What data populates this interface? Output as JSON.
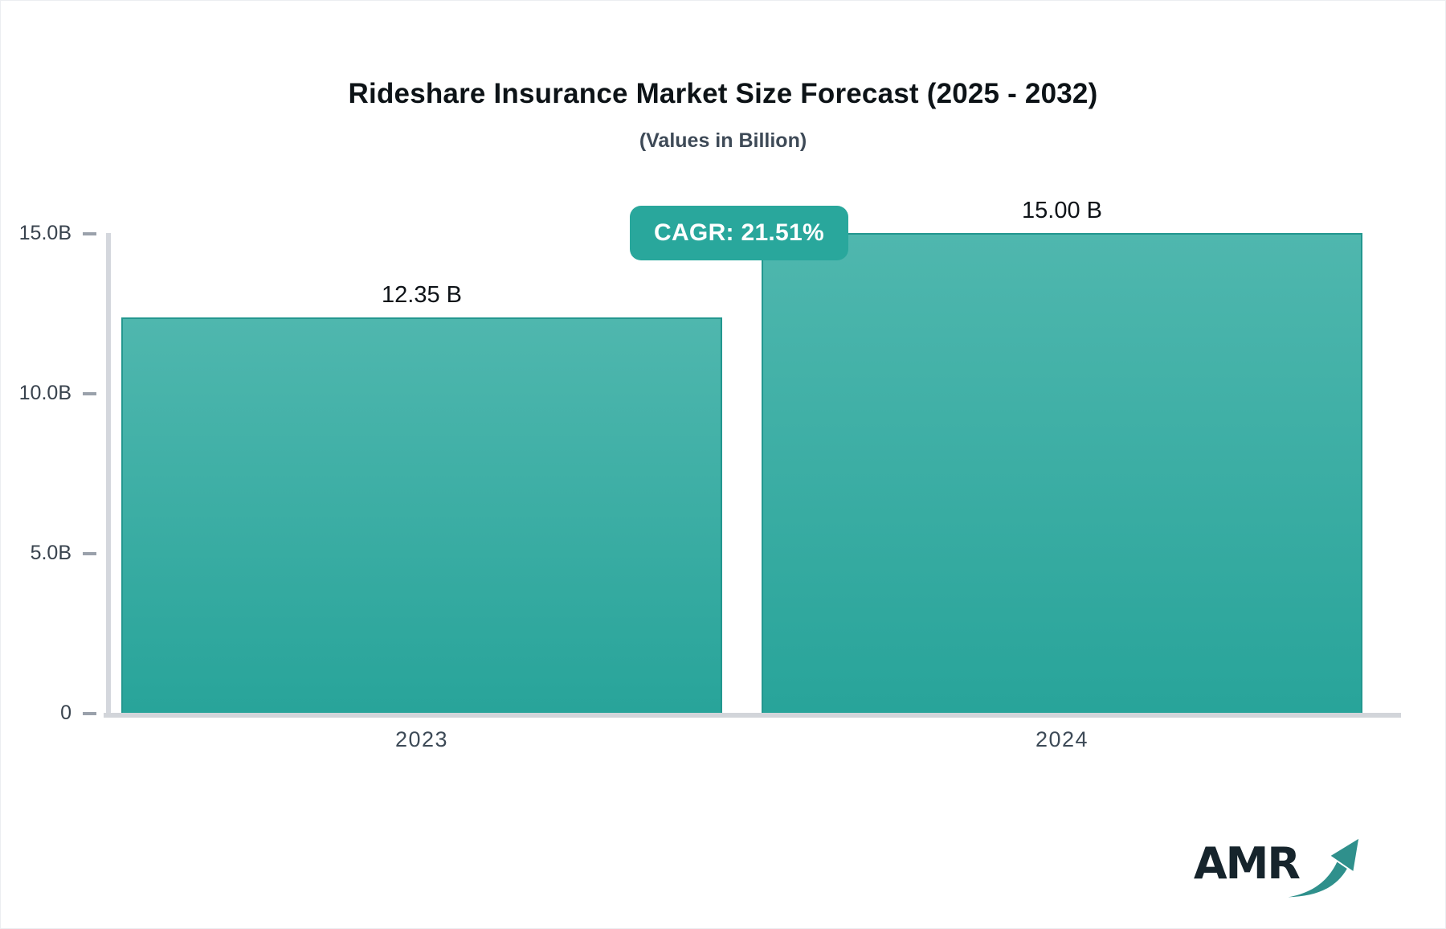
{
  "chart_data": {
    "type": "bar",
    "title": "Rideshare Insurance Market Size Forecast (2025 - 2032)",
    "subtitle": "(Values in Billion)",
    "categories": [
      "2023",
      "2024"
    ],
    "values": [
      12.35,
      15.0
    ],
    "value_labels": [
      "12.35 B",
      "15.00 B"
    ],
    "ylim": [
      0,
      15
    ],
    "yticks": [
      {
        "label": "0",
        "value": 0
      },
      {
        "label": "5.0B",
        "value": 5
      },
      {
        "label": "10.0B",
        "value": 10
      },
      {
        "label": "15.0B",
        "value": 15
      }
    ],
    "grid": false,
    "legend": false,
    "cagr_label": "CAGR: 21.51%",
    "colors": {
      "bar_gradient_top": "#4FB7AE",
      "bar_gradient_bottom": "#28A49A",
      "bar_border": "#23978F",
      "badge_background": "#29A79C",
      "axis_line": "#D2D5DA",
      "tick_dash": "#9AA1AB"
    }
  },
  "logo": {
    "text": "AMR",
    "text_color": "#16242C",
    "arrow_icon": "growth-arrow-icon",
    "arrow_color": "#2F908C"
  }
}
